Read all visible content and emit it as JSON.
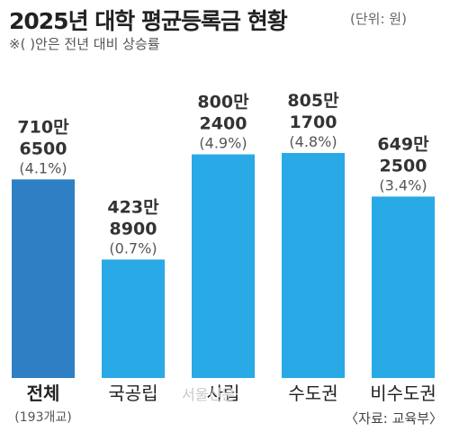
{
  "header": {
    "title": "2025년 대학 평균등록금 현황",
    "unit": "(단위: 원)",
    "note": "※(  )안은 전년 대비 상승률"
  },
  "watermark": "서울신문",
  "source": "〈자료: 교육부〉",
  "colors": {
    "primary": "#2f7fc4",
    "secondary": "#29a9e6"
  },
  "chart_data": {
    "type": "bar",
    "title": "2025년 대학 평균등록금 현황",
    "categories": [
      "전체",
      "국공립",
      "사립",
      "수도권",
      "비수도권"
    ],
    "subcategories": [
      "(193개교)",
      "",
      "",
      "",
      ""
    ],
    "values": [
      7106500,
      4238900,
      8002400,
      8051700,
      6492500
    ],
    "labels_line1": [
      "710만",
      "423만",
      "800만",
      "805만",
      "649만"
    ],
    "labels_line2": [
      "6500",
      "8900",
      "2400",
      "1700",
      "2500"
    ],
    "change_labels": [
      "(4.1%)",
      "(0.7%)",
      "(4.9%)",
      "(4.8%)",
      "(3.4%)"
    ],
    "xlabel": "",
    "ylabel": "",
    "ylim": [
      0,
      8500000
    ],
    "grid": false,
    "legend": "none"
  }
}
